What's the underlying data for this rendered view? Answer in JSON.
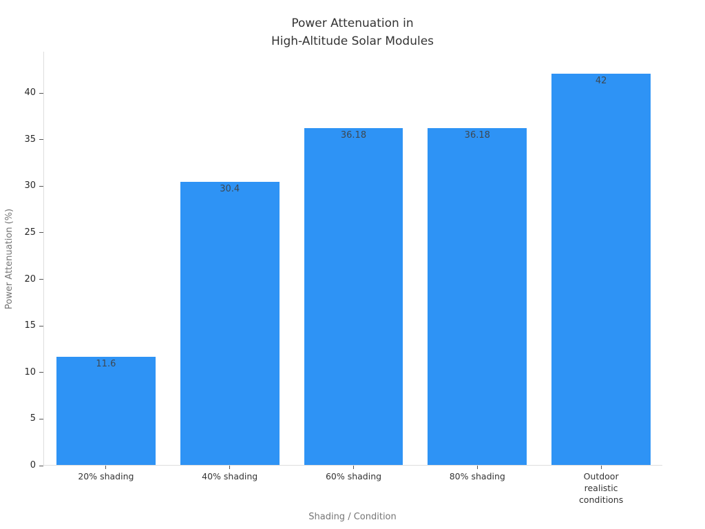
{
  "chart_data": {
    "type": "bar",
    "title": "Power Attenuation in\nHigh-Altitude Solar Modules",
    "xlabel": "Shading / Condition",
    "ylabel": "Power Attenuation (%)",
    "categories": [
      "20% shading",
      "40% shading",
      "60% shading",
      "80% shading",
      "Outdoor\nrealistic\nconditions"
    ],
    "values": [
      11.6,
      30.4,
      36.18,
      36.18,
      42
    ],
    "value_labels": [
      "11.6",
      "30.4",
      "36.18",
      "36.18",
      "42"
    ],
    "yticks": [
      0,
      5,
      10,
      15,
      20,
      25,
      30,
      35,
      40
    ],
    "ylim": [
      0,
      44.44
    ],
    "grid": false,
    "legend_position": "none",
    "bar_width_fraction": 0.8,
    "colors": {
      "bar": "#2E93F5",
      "title": "#333333",
      "tick_label": "#262626",
      "axis_title": "#757575",
      "axis_line": "#DDDDDD",
      "tick_mark": "#555555",
      "value_label": "#3D4852"
    }
  }
}
